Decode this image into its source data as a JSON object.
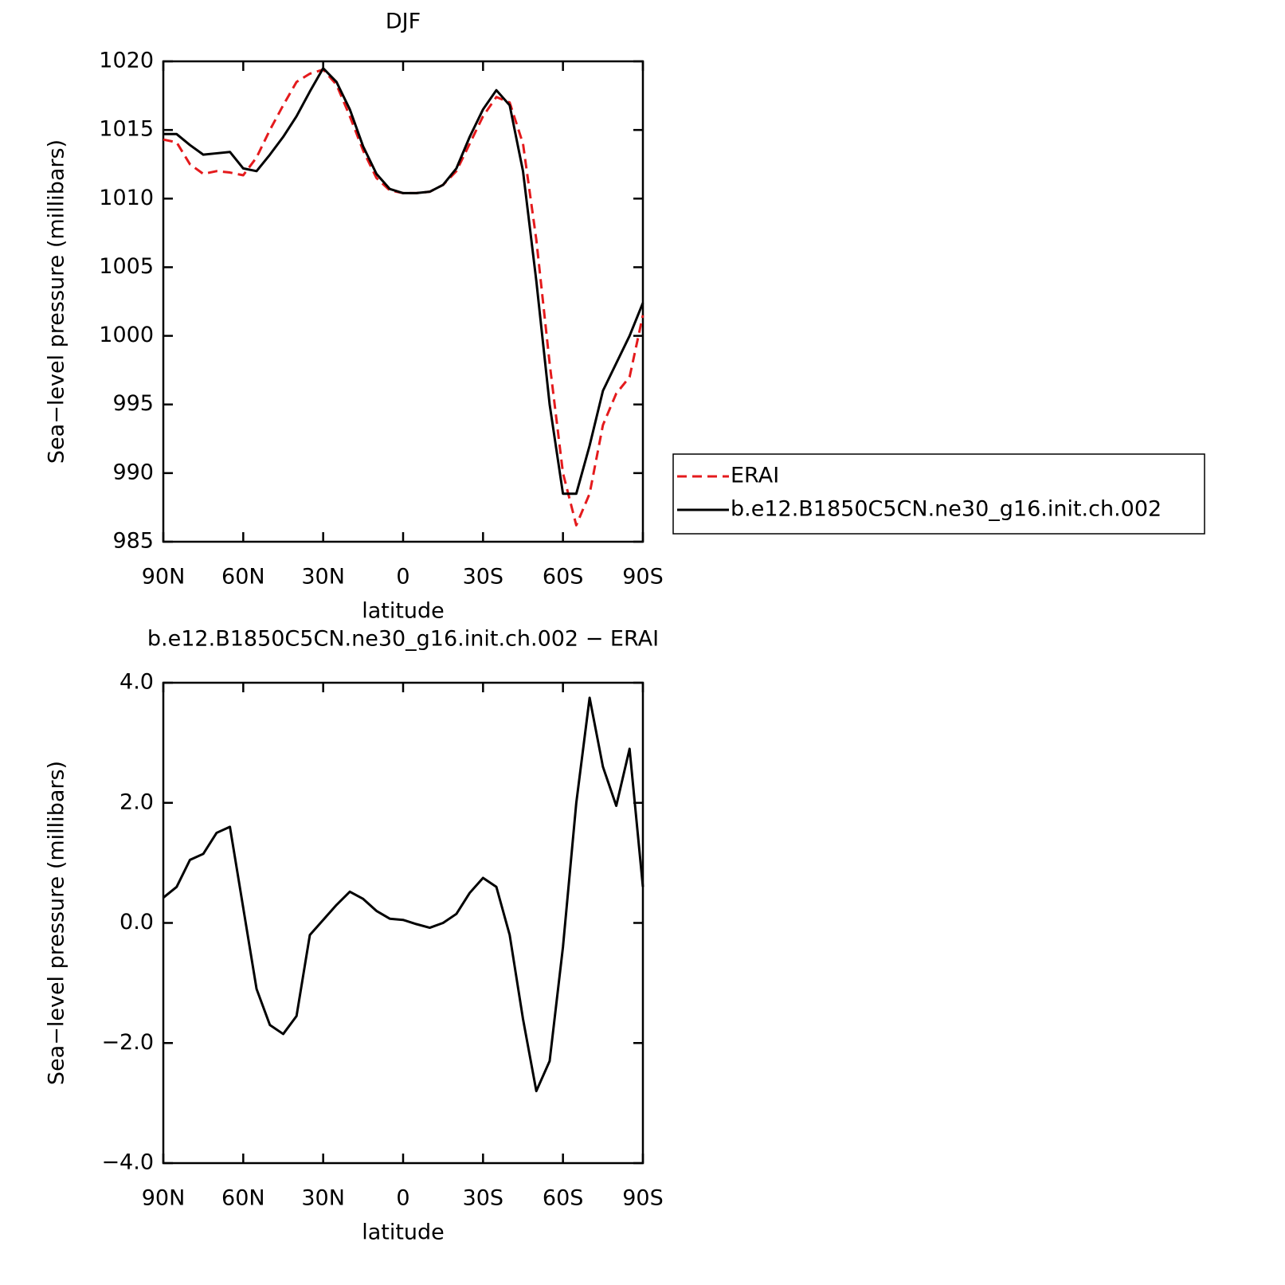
{
  "chart_data": [
    {
      "type": "line",
      "title": "DJF",
      "ylabel": "Sea−level pressure (millibars)",
      "xlabel": "latitude",
      "x": [
        90,
        85,
        80,
        75,
        70,
        65,
        60,
        55,
        50,
        45,
        40,
        35,
        30,
        25,
        20,
        15,
        10,
        5,
        0,
        -5,
        -10,
        -15,
        -20,
        -25,
        -30,
        -35,
        -40,
        -45,
        -50,
        -55,
        -60,
        -65,
        -70,
        -75,
        -80,
        -85,
        -90
      ],
      "series": [
        {
          "name": "ERAI",
          "color": "#e41a1c",
          "line_style": "dashed",
          "values": [
            1014.3,
            1014.1,
            1012.5,
            1011.8,
            1012.0,
            1011.9,
            1011.7,
            1013.0,
            1015.0,
            1016.8,
            1018.5,
            1019.1,
            1019.4,
            1018.3,
            1016.0,
            1013.5,
            1011.5,
            1010.6,
            1010.4,
            1010.4,
            1010.5,
            1011.0,
            1012.0,
            1014.0,
            1016.0,
            1017.4,
            1017.0,
            1014.0,
            1007.0,
            998.0,
            990.0,
            986.2,
            988.5,
            993.5,
            995.8,
            997.0,
            1001.5
          ]
        },
        {
          "name": "b.e12.B1850C5CN.ne30_g16.init.ch.002",
          "color": "#000000",
          "line_style": "solid",
          "values": [
            1014.7,
            1014.7,
            1013.9,
            1013.2,
            1013.3,
            1013.4,
            1012.2,
            1012.0,
            1013.2,
            1014.5,
            1016.0,
            1017.8,
            1019.5,
            1018.5,
            1016.5,
            1013.8,
            1011.8,
            1010.7,
            1010.4,
            1010.4,
            1010.5,
            1011.0,
            1012.2,
            1014.5,
            1016.5,
            1017.9,
            1016.8,
            1012.0,
            1004.0,
            995.0,
            988.5,
            988.5,
            992.0,
            996.0,
            998.0,
            1000.0,
            1002.4
          ]
        }
      ],
      "xlim": [
        90,
        -90
      ],
      "xticks": [
        {
          "value": 90,
          "label": "90N"
        },
        {
          "value": 60,
          "label": "60N"
        },
        {
          "value": 30,
          "label": "30N"
        },
        0,
        {
          "value": -30,
          "label": "30S"
        },
        {
          "value": -60,
          "label": "60S"
        },
        {
          "value": -90,
          "label": "90S"
        }
      ],
      "ylim": [
        985,
        1020
      ],
      "yticks": [
        985,
        990,
        995,
        1000,
        1005,
        1010,
        1015,
        1020
      ],
      "legend": "right"
    },
    {
      "type": "line",
      "title": "b.e12.B1850C5CN.ne30_g16.init.ch.002 − ERAI",
      "ylabel": "Sea−level pressure (millibars)",
      "xlabel": "latitude",
      "x": [
        90,
        85,
        80,
        75,
        70,
        65,
        60,
        55,
        50,
        45,
        40,
        35,
        30,
        25,
        20,
        15,
        10,
        5,
        0,
        -5,
        -10,
        -15,
        -20,
        -25,
        -30,
        -35,
        -40,
        -45,
        -50,
        -55,
        -60,
        -65,
        -70,
        -75,
        -80,
        -85,
        -90
      ],
      "values": [
        0.42,
        0.6,
        1.05,
        1.15,
        1.5,
        1.6,
        0.25,
        -1.1,
        -1.7,
        -1.85,
        -1.55,
        -0.2,
        0.05,
        0.3,
        0.52,
        0.4,
        0.2,
        0.07,
        0.05,
        -0.02,
        -0.08,
        0.0,
        0.15,
        0.5,
        0.75,
        0.6,
        -0.2,
        -1.6,
        -2.8,
        -2.3,
        -0.4,
        2.0,
        3.75,
        2.6,
        1.95,
        2.9,
        0.6
      ],
      "color": "#000000",
      "xlim": [
        90,
        -90
      ],
      "xticks": [
        {
          "value": 90,
          "label": "90N"
        },
        {
          "value": 60,
          "label": "60N"
        },
        {
          "value": 30,
          "label": "30N"
        },
        0,
        {
          "value": -30,
          "label": "30S"
        },
        {
          "value": -60,
          "label": "60S"
        },
        {
          "value": -90,
          "label": "90S"
        }
      ],
      "ylim": [
        -4,
        4
      ],
      "yticks": [
        {
          "value": -4,
          "label": "−4.0"
        },
        {
          "value": -2,
          "label": "−2.0"
        },
        {
          "value": 0,
          "label": "0.0"
        },
        {
          "value": 2,
          "label": "2.0"
        },
        {
          "value": 4,
          "label": "4.0"
        }
      ]
    }
  ]
}
